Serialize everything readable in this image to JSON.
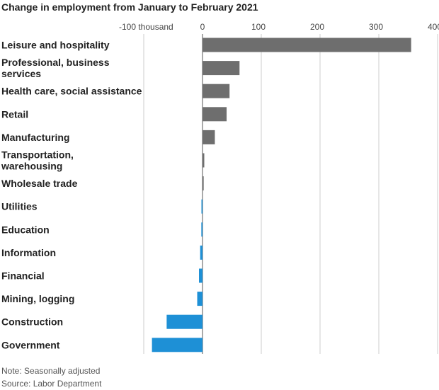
{
  "title": "Change in employment from January to February 2021",
  "notes": {
    "note": "Note: Seasonally adjusted",
    "source": "Source: Labor Department"
  },
  "colors": {
    "positive": "#6e6e6e",
    "negative": "#1e90d6",
    "gridline": "#cccccc",
    "zero_line": "#555555"
  },
  "chart_data": {
    "type": "bar",
    "orientation": "horizontal",
    "title": "Change in employment from January to February 2021",
    "xlabel": "",
    "ylabel": "",
    "xlim": [
      -100,
      400
    ],
    "x_ticks": [
      -100,
      0,
      100,
      200,
      300,
      400
    ],
    "x_tick_labels": [
      "-100 thousand",
      "0",
      "100",
      "200",
      "300",
      "400"
    ],
    "grid": true,
    "categories": [
      [
        "Leisure and hospitality"
      ],
      [
        "Professional, business",
        "services"
      ],
      [
        "Health care, social assistance"
      ],
      [
        "Retail"
      ],
      [
        "Manufacturing"
      ],
      [
        "Transportation,",
        "warehousing"
      ],
      [
        "Wholesale trade"
      ],
      [
        "Utilities"
      ],
      [
        "Education"
      ],
      [
        "Information"
      ],
      [
        "Financial"
      ],
      [
        "Mining, logging"
      ],
      [
        "Construction"
      ],
      [
        "Government"
      ]
    ],
    "values": [
      355,
      63,
      46,
      41,
      21,
      3,
      2,
      -1,
      -2,
      -4,
      -6,
      -9,
      -61,
      -86
    ]
  }
}
